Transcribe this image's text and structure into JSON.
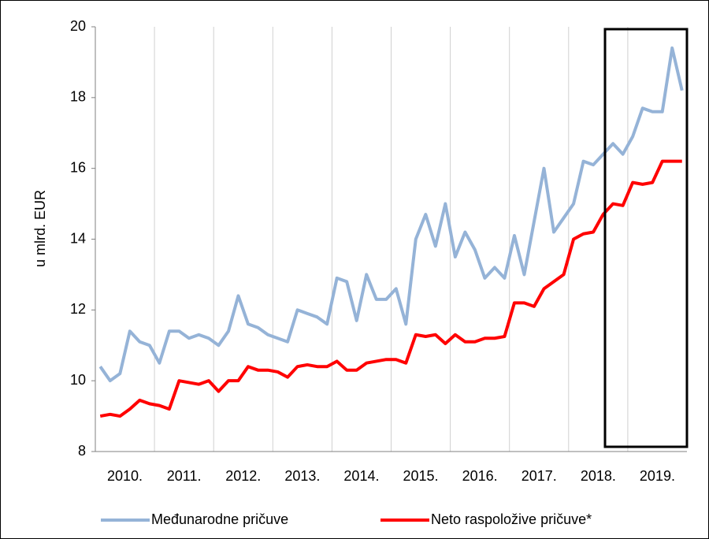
{
  "chart_data": {
    "type": "line",
    "y_label": "u mlrd. EUR",
    "categories": [
      null,
      null,
      null,
      "2010.",
      null,
      null,
      null,
      null,
      null,
      "2011.",
      null,
      null,
      null,
      null,
      null,
      "2012.",
      null,
      null,
      null,
      null,
      null,
      "2013.",
      null,
      null,
      null,
      null,
      null,
      "2014.",
      null,
      null,
      null,
      null,
      null,
      "2015.",
      null,
      null,
      null,
      null,
      null,
      "2016.",
      null,
      null,
      null,
      null,
      null,
      "2017.",
      null,
      null,
      null,
      null,
      null,
      "2018.",
      null,
      null,
      null,
      null,
      null,
      "2019.",
      null,
      null
    ],
    "series": [
      {
        "name": "Međunarodne pričuve",
        "color": "#95b3d7",
        "values": [
          10.4,
          10.0,
          10.2,
          11.4,
          11.1,
          11.0,
          10.5,
          11.4,
          11.4,
          11.2,
          11.3,
          11.2,
          11.0,
          11.4,
          12.4,
          11.6,
          11.5,
          11.3,
          11.2,
          11.1,
          12.0,
          11.9,
          11.8,
          11.6,
          12.9,
          12.8,
          11.7,
          13.0,
          12.3,
          12.3,
          12.6,
          11.6,
          14.0,
          14.7,
          13.8,
          15.0,
          13.5,
          14.2,
          13.7,
          12.9,
          13.2,
          12.9,
          14.1,
          13.0,
          14.5,
          16.0,
          14.2,
          14.6,
          15.0,
          16.2,
          16.1,
          16.4,
          16.7,
          16.4,
          16.9,
          17.7,
          17.6,
          17.6,
          19.4,
          18.2
        ]
      },
      {
        "name": "Neto raspoložive pričuve*",
        "color": "#ff0000",
        "values": [
          9.0,
          9.05,
          9.0,
          9.2,
          9.45,
          9.35,
          9.3,
          9.2,
          10.0,
          9.95,
          9.9,
          10.0,
          9.7,
          10.0,
          10.0,
          10.4,
          10.3,
          10.3,
          10.25,
          10.1,
          10.4,
          10.45,
          10.4,
          10.4,
          10.55,
          10.3,
          10.3,
          10.5,
          10.55,
          10.6,
          10.6,
          10.5,
          11.3,
          11.25,
          11.3,
          11.05,
          11.3,
          11.1,
          11.1,
          11.2,
          11.2,
          11.25,
          12.2,
          12.2,
          12.1,
          12.6,
          12.8,
          13.0,
          14.0,
          14.15,
          14.2,
          14.7,
          15.0,
          14.95,
          15.6,
          15.55,
          15.6,
          16.2,
          16.2,
          16.2
        ]
      }
    ],
    "ylim": [
      8,
      20
    ],
    "yticks": [
      8,
      10,
      12,
      14,
      16,
      18,
      20
    ],
    "grid": false
  }
}
